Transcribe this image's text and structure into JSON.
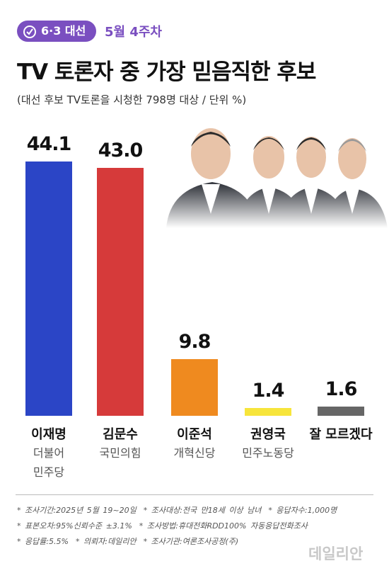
{
  "header": {
    "badge": "6·3 대선",
    "week": "5월 4주차"
  },
  "chart_data": {
    "type": "bar",
    "title": "TV 토론자 중 가장 믿음직한 후보",
    "subtitle": "(대선 후보 TV토론을 시청한 798명 대상 / 단위 %)",
    "categories": [
      "이재명",
      "김문수",
      "이준석",
      "권영국",
      "잘 모르겠다"
    ],
    "parties": [
      "더불어\n민주당",
      "국민의힘",
      "개혁신당",
      "민주노동당",
      null
    ],
    "values": [
      44.1,
      43.0,
      9.8,
      1.4,
      1.6
    ],
    "value_labels": [
      "44.1",
      "43.0",
      "9.8",
      "1.4",
      "1.6"
    ],
    "colors": [
      "#2b45c6",
      "#d63a3a",
      "#ef8a1f",
      "#f7e53b",
      "#666666"
    ]
  },
  "notes": [
    [
      "* 조사기간:2025년 5월 19~20일",
      "* 조사대상:전국 만18세 이상 남녀",
      "* 응답자수:1,000명"
    ],
    [
      "* 표본오차:95%신뢰수준 ±3.1%",
      "* 조사방법:휴대전화RDD100% 자동응답전화조사"
    ],
    [
      "* 응답률:5.5%",
      "* 의뢰자:데일리안",
      "* 조사기관:여론조사공정(주)"
    ]
  ],
  "watermark": "데일리안"
}
